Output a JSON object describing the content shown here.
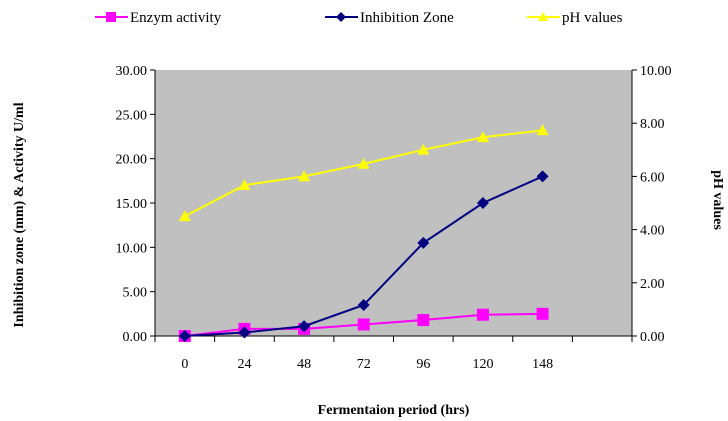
{
  "chart_data": {
    "type": "line",
    "title": "",
    "xlabel": "Fermentaion period (hrs)",
    "ylabel": "Inhibition zone (mm) & Activity U/ml",
    "y2label": "pH values",
    "categories": [
      "0",
      "24",
      "48",
      "72",
      "96",
      "120",
      "148"
    ],
    "ylim": [
      0,
      30
    ],
    "y_ticks": [
      "0.00",
      "5.00",
      "10.00",
      "15.00",
      "20.00",
      "25.00",
      "30.00"
    ],
    "y2lim": [
      0,
      10
    ],
    "y2_ticks": [
      "0.00",
      "2.00",
      "4.00",
      "6.00",
      "8.00",
      "10.00"
    ],
    "grid": false,
    "plot_background": "#c0c0c0",
    "legend_position": "top",
    "series": [
      {
        "name": "Enzym activity",
        "axis": "left",
        "color": "#ff00ff",
        "marker": "square",
        "values": [
          0.0,
          0.8,
          0.8,
          1.3,
          1.8,
          2.4,
          2.5
        ]
      },
      {
        "name": "Inhibition Zone",
        "axis": "left",
        "color": "#000080",
        "marker": "diamond",
        "values": [
          0.0,
          0.4,
          1.1,
          3.5,
          10.5,
          15.0,
          18.0
        ]
      },
      {
        "name": "pH values",
        "axis": "right",
        "color": "#ffff00",
        "marker": "triangle",
        "values": [
          4.5,
          5.67,
          6.0,
          6.47,
          7.0,
          7.47,
          7.73
        ]
      }
    ]
  }
}
